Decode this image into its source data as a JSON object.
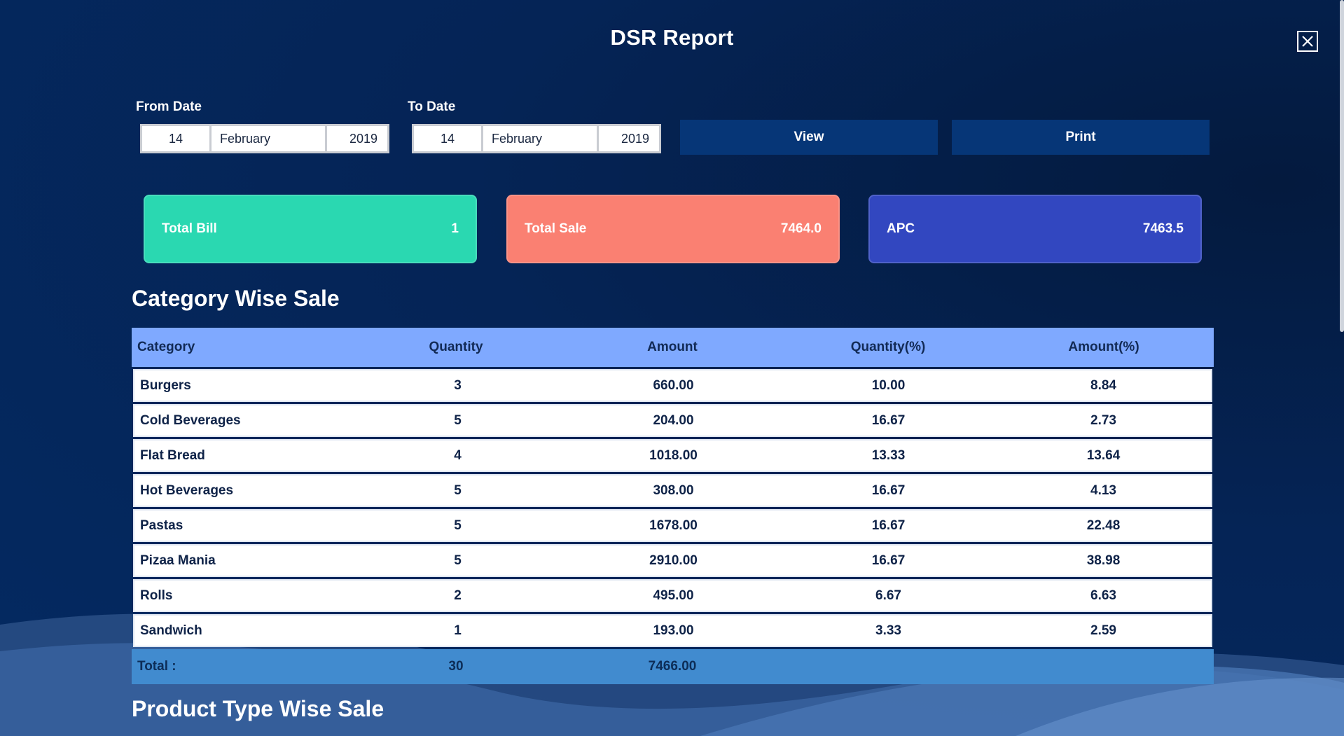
{
  "title": "DSR Report",
  "from_date": {
    "label": "From Date",
    "day": "14",
    "month": "February",
    "year": "2019"
  },
  "to_date": {
    "label": "To Date",
    "day": "14",
    "month": "February",
    "year": "2019"
  },
  "buttons": {
    "view": "View",
    "print": "Print"
  },
  "cards": [
    {
      "label": "Total Bill",
      "value": "1",
      "color": "#2ad8b1"
    },
    {
      "label": "Total Sale",
      "value": "7464.0",
      "color": "#fa8072"
    },
    {
      "label": "APC",
      "value": "7463.5",
      "color": "#3247c0"
    }
  ],
  "category_section": {
    "title": "Category Wise Sale",
    "headers": [
      "Category",
      "Quantity",
      "Amount",
      "Quantity(%)",
      "Amount(%)"
    ],
    "rows": [
      [
        "Burgers",
        "3",
        "660.00",
        "10.00",
        "8.84"
      ],
      [
        "Cold Beverages",
        "5",
        "204.00",
        "16.67",
        "2.73"
      ],
      [
        "Flat Bread",
        "4",
        "1018.00",
        "13.33",
        "13.64"
      ],
      [
        "Hot Beverages",
        "5",
        "308.00",
        "16.67",
        "4.13"
      ],
      [
        "Pastas",
        "5",
        "1678.00",
        "16.67",
        "22.48"
      ],
      [
        "Pizaa Mania",
        "5",
        "2910.00",
        "16.67",
        "38.98"
      ],
      [
        "Rolls",
        "2",
        "495.00",
        "6.67",
        "6.63"
      ],
      [
        "Sandwich",
        "1",
        "193.00",
        "3.33",
        "2.59"
      ]
    ],
    "total": {
      "label": "Total :",
      "quantity": "30",
      "amount": "7466.00"
    }
  },
  "product_section": {
    "title": "Product Type Wise Sale"
  },
  "colors": {
    "header_bg": "#7fa9ff",
    "total_bg": "#418bcf",
    "button_bg": "#063677"
  }
}
